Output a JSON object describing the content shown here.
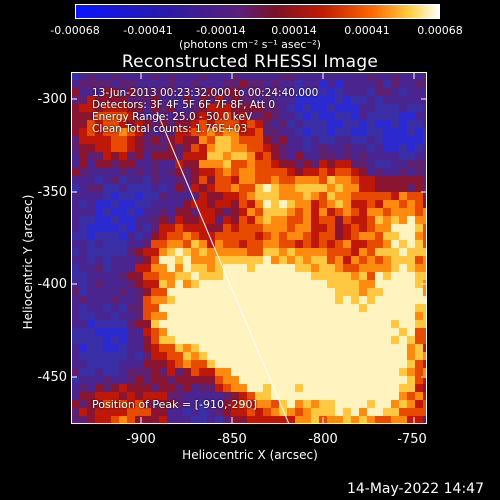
{
  "colorbar": {
    "ticks": [
      "-0.00068",
      "-0.00041",
      "-0.00014",
      "0.00014",
      "0.00041",
      "0.00068"
    ],
    "units": "(photons cm⁻² s⁻¹ asec⁻²)"
  },
  "title": "Reconstructed RHESSI Image",
  "annotations": {
    "time": "13-Jun-2013 00:23:32.000 to 00:24:40.000",
    "detectors": "Detectors: 3F 4F 5F 6F 7F 8F, Att 0",
    "energy": "Energy Range: 25.0 - 50.0 keV",
    "clean": "Clean    Total counts: 1.76E+03",
    "peak": "Position of Peak = [-910,-290]"
  },
  "axes": {
    "xlabel": "Heliocentric X (arcsec)",
    "ylabel": "Heliocentric Y (arcsec)",
    "xticks": [
      "-900",
      "-850",
      "-800",
      "-750"
    ],
    "yticks": [
      "-300",
      "-350",
      "-400",
      "-450"
    ]
  },
  "footer": {
    "date": "14-May-2022 14:47"
  },
  "colors": {
    "background": "#000000",
    "text": "#ffffff"
  }
}
